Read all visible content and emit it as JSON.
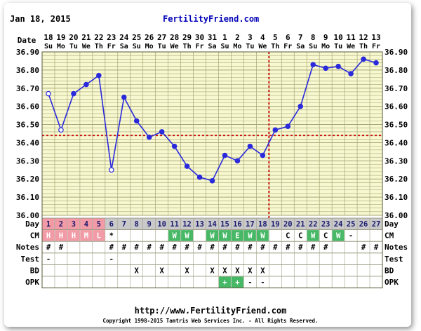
{
  "header": {
    "date": "Jan 18, 2015",
    "site": "FertilityFriend.com"
  },
  "footer": {
    "url": "http://www.FertilityFriend.com",
    "copyright": "Copyright 1998-2015 Tamtris Web Services Inc. - All Rights Reserved."
  },
  "colors": {
    "plot_bg": "#f8f8d0",
    "grid": "#a6a676",
    "line": "#2a2adc",
    "coverline": "#cc1111",
    "period": "#f29aa6",
    "green": "#47b866",
    "day_bar": "#c9c9c9",
    "site_link": "#0000b8"
  },
  "chart_data": {
    "type": "line",
    "title": "",
    "xlabel": "Date",
    "ylabel": "",
    "ylim": [
      36.0,
      36.9
    ],
    "y_ticks": [
      "36.00",
      "36.10",
      "36.20",
      "36.30",
      "36.40",
      "36.50",
      "36.60",
      "36.70",
      "36.80",
      "36.90"
    ],
    "dates": [
      "18",
      "19",
      "20",
      "21",
      "22",
      "23",
      "24",
      "25",
      "26",
      "27",
      "28",
      "29",
      "30",
      "31",
      "1",
      "2",
      "3",
      "4",
      "5",
      "6",
      "7",
      "8",
      "9",
      "10",
      "11",
      "12",
      "13"
    ],
    "weekdays": [
      "Su",
      "Mo",
      "Tu",
      "We",
      "Th",
      "Fr",
      "Sa",
      "Su",
      "Mo",
      "Tu",
      "We",
      "Th",
      "Fr",
      "Sa",
      "Su",
      "Mo",
      "Tu",
      "We",
      "Th",
      "Fr",
      "Sa",
      "Su",
      "Mo",
      "Tu",
      "We",
      "Th",
      "Fr"
    ],
    "cycle_days": [
      "1",
      "2",
      "3",
      "4",
      "5",
      "6",
      "7",
      "8",
      "9",
      "10",
      "11",
      "12",
      "13",
      "14",
      "15",
      "16",
      "17",
      "18",
      "19",
      "20",
      "21",
      "22",
      "23",
      "24",
      "25",
      "26",
      "27"
    ],
    "temperatures": [
      36.67,
      36.47,
      36.67,
      36.72,
      36.77,
      36.25,
      36.65,
      36.52,
      36.43,
      36.46,
      36.38,
      36.27,
      36.21,
      36.19,
      36.33,
      36.3,
      36.38,
      36.33,
      36.47,
      36.49,
      36.6,
      36.83,
      36.81,
      36.82,
      36.78,
      36.86,
      36.84
    ],
    "open_points": [
      0,
      1,
      5
    ],
    "coverline": 36.44,
    "ovulation_day_index": 17,
    "grid": true
  },
  "rows": [
    {
      "label": "Day",
      "key": "cycle_days"
    },
    {
      "label": "CM",
      "cells": [
        "H",
        "H",
        "H",
        "M",
        "L",
        "*",
        "",
        "",
        "",
        "",
        "W",
        "W",
        "",
        "W",
        "W",
        "E",
        "W",
        "W",
        "",
        "C",
        "C",
        "W",
        "C",
        "W",
        "-",
        "",
        ""
      ],
      "fills": [
        "period",
        "period",
        "period",
        "period",
        "period",
        "",
        "",
        "",
        "",
        "",
        "green",
        "green",
        "",
        "green",
        "green",
        "green",
        "green",
        "green",
        "",
        "",
        "",
        "green",
        "",
        "green",
        "",
        "",
        ""
      ]
    },
    {
      "label": "Notes",
      "cells": [
        "#",
        "#",
        "",
        "",
        "",
        "#",
        "#",
        "#",
        "#",
        "#",
        "#",
        "#",
        "#",
        "#",
        "#",
        "#",
        "#",
        "#",
        "#",
        "#",
        "#",
        "#",
        "#",
        "",
        "",
        "#",
        "#"
      ]
    },
    {
      "label": "Test",
      "cells": [
        "-",
        "",
        "",
        "",
        "",
        "-",
        "",
        "",
        "",
        "",
        "",
        "",
        "",
        "",
        "",
        "",
        "",
        "",
        "",
        "",
        "",
        "",
        "",
        "",
        "",
        "",
        ""
      ]
    },
    {
      "label": "BD",
      "cells": [
        "",
        "",
        "",
        "",
        "",
        "",
        "",
        "X",
        "",
        "X",
        "",
        "X",
        "",
        "X",
        "X",
        "X",
        "X",
        "X",
        "",
        "",
        "",
        "",
        "",
        "",
        "",
        "",
        ""
      ]
    },
    {
      "label": "OPK",
      "cells": [
        "",
        "",
        "",
        "",
        "",
        "",
        "",
        "",
        "",
        "",
        "",
        "",
        "",
        "",
        "+",
        "+",
        "-",
        "-",
        "",
        "",
        "",
        "",
        "",
        "",
        "",
        "",
        ""
      ],
      "fills": [
        "",
        "",
        "",
        "",
        "",
        "",
        "",
        "",
        "",
        "",
        "",
        "",
        "",
        "",
        "green",
        "green",
        "",
        "",
        "",
        "",
        "",
        "",
        "",
        "",
        "",
        "",
        ""
      ]
    }
  ]
}
